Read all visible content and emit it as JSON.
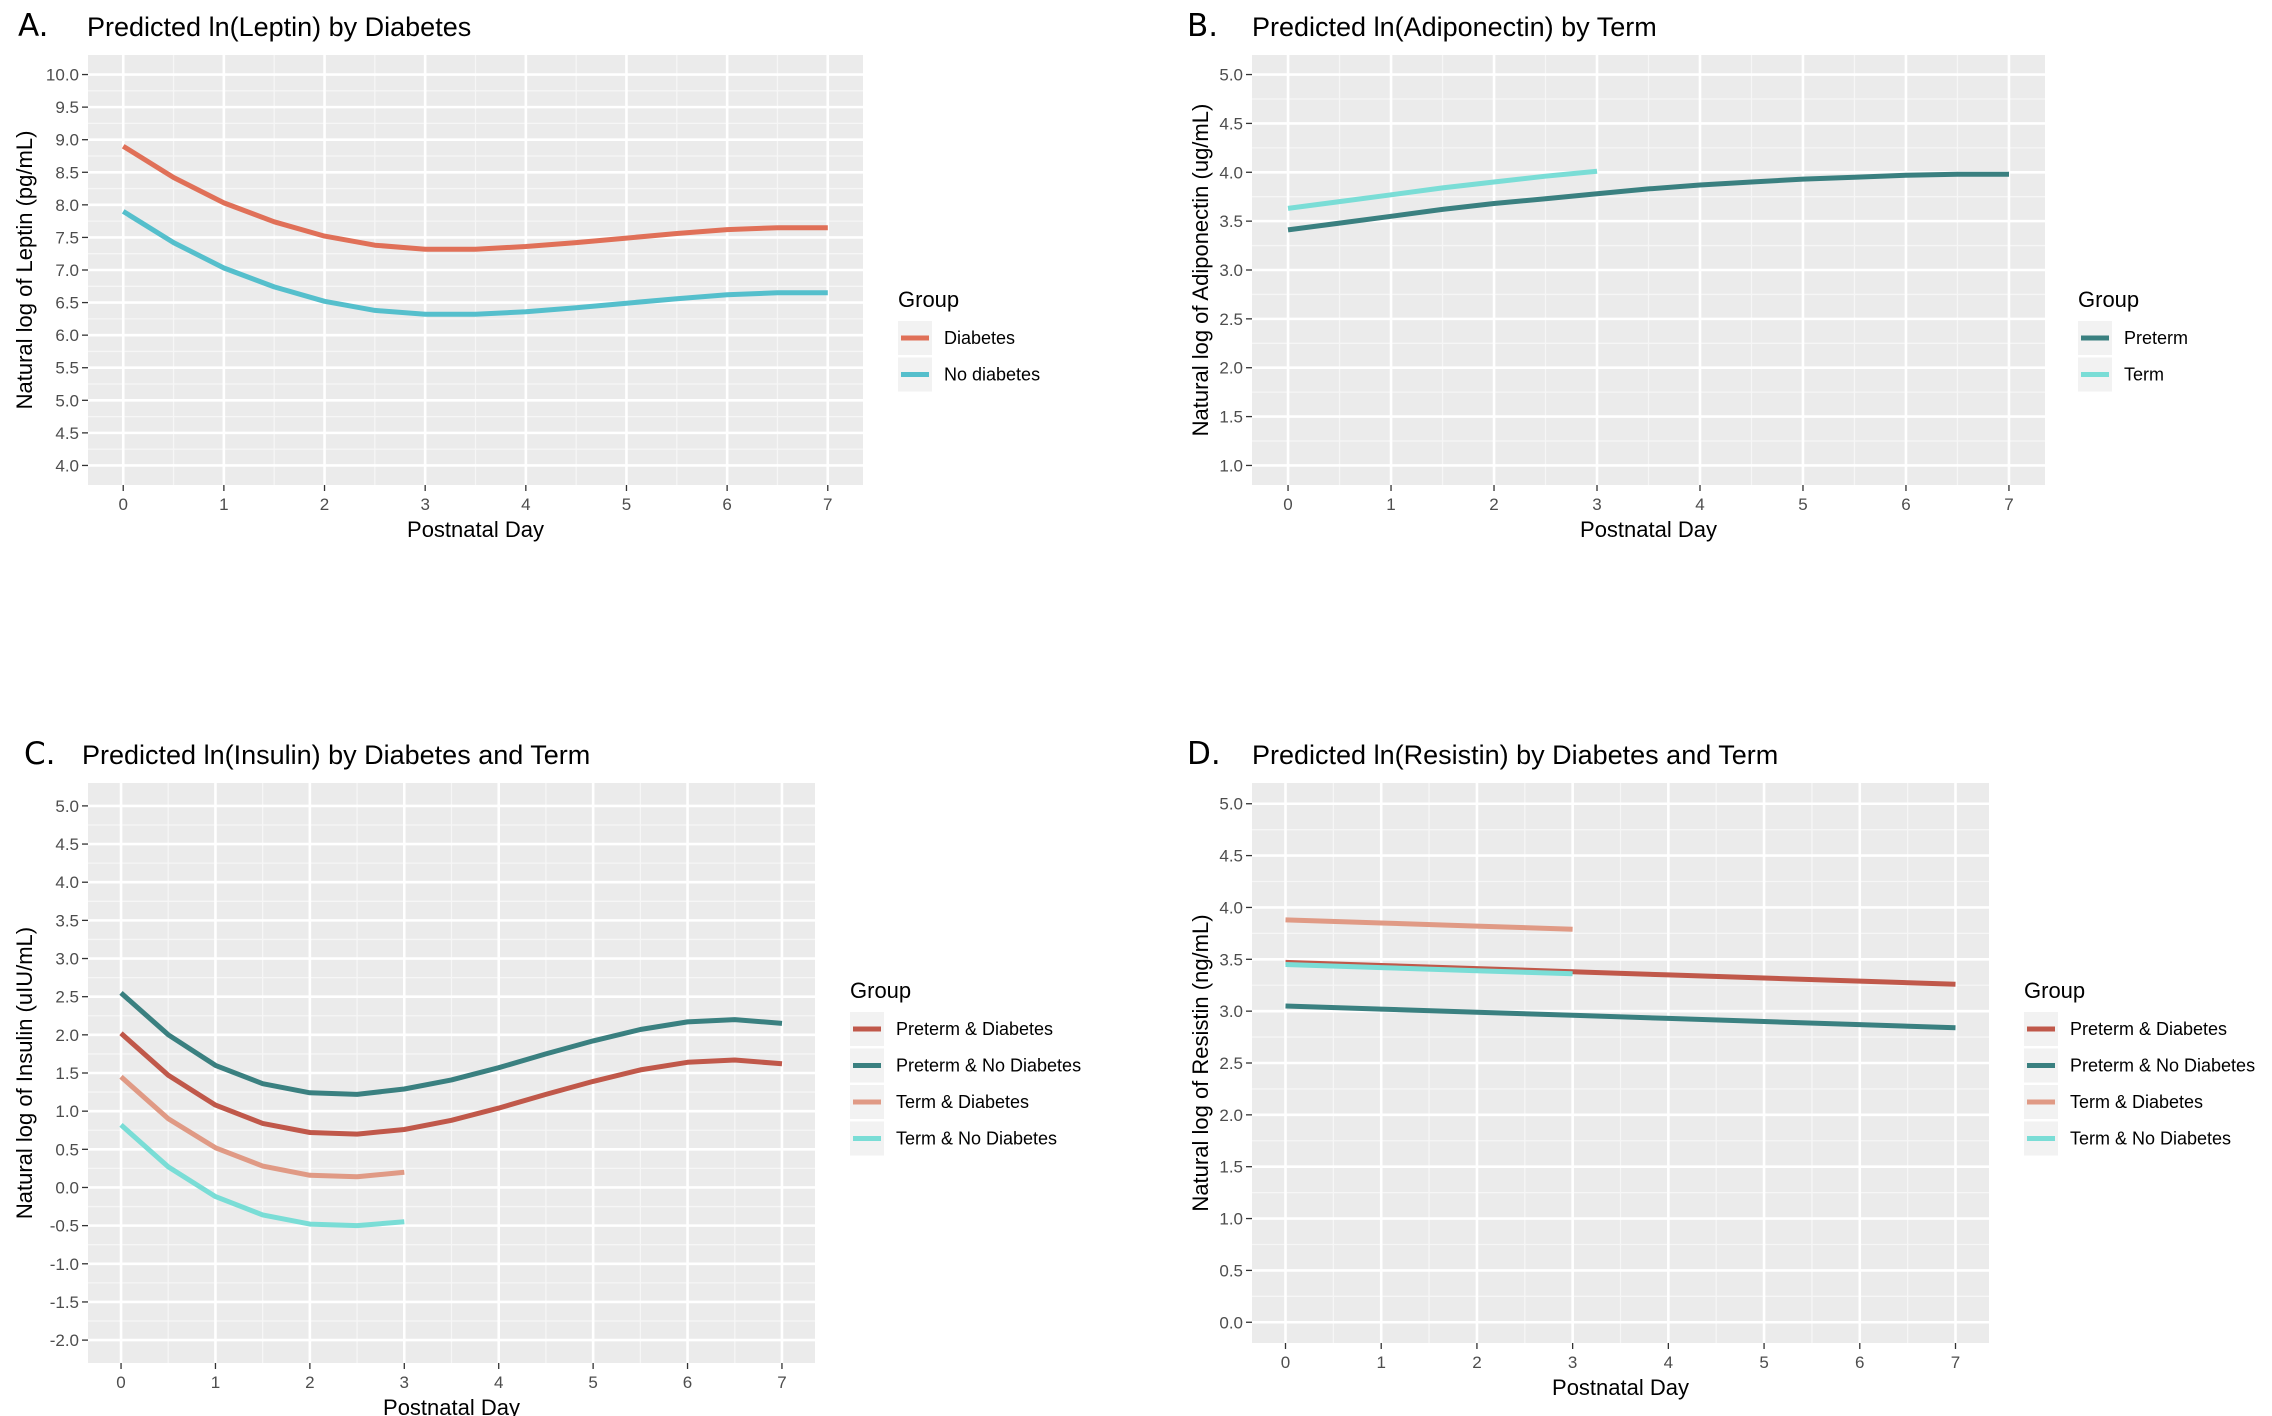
{
  "chart_data": [
    {
      "panel": "A.",
      "type": "line",
      "title": "Predicted ln(Leptin) by Diabetes",
      "xlabel": "Postnatal Day",
      "ylabel": "Natural log of Leptin (pg/mL)",
      "xlim": [
        -0.35,
        7.35
      ],
      "ylim": [
        3.7,
        10.3
      ],
      "xticks": [
        0,
        1,
        2,
        3,
        4,
        5,
        6,
        7
      ],
      "xtick_labels": [
        "0",
        "1",
        "2",
        "3",
        "4",
        "5",
        "6",
        "7"
      ],
      "yticks": [
        4.0,
        4.5,
        5.0,
        5.5,
        6.0,
        6.5,
        7.0,
        7.5,
        8.0,
        8.5,
        9.0,
        9.5,
        10.0
      ],
      "ytick_labels": [
        "4.0",
        "4.5",
        "5.0",
        "5.5",
        "6.0",
        "6.5",
        "7.0",
        "7.5",
        "8.0",
        "8.5",
        "9.0",
        "9.5",
        "10.0"
      ],
      "grid": true,
      "legend_title": "Group",
      "legend_position": "right",
      "series": [
        {
          "name": "Diabetes",
          "color": "#E07058",
          "x": [
            0,
            0.5,
            1,
            1.5,
            2,
            2.5,
            3,
            3.5,
            4,
            4.5,
            5,
            5.5,
            6,
            6.5,
            7
          ],
          "y": [
            8.9,
            8.42,
            8.03,
            7.74,
            7.52,
            7.38,
            7.32,
            7.32,
            7.36,
            7.42,
            7.49,
            7.56,
            7.62,
            7.65,
            7.65
          ]
        },
        {
          "name": "No diabetes",
          "color": "#55BFCC",
          "x": [
            0,
            0.5,
            1,
            1.5,
            2,
            2.5,
            3,
            3.5,
            4,
            4.5,
            5,
            5.5,
            6,
            6.5,
            7
          ],
          "y": [
            7.9,
            7.42,
            7.03,
            6.74,
            6.52,
            6.38,
            6.32,
            6.32,
            6.36,
            6.42,
            6.49,
            6.56,
            6.62,
            6.65,
            6.65
          ]
        }
      ]
    },
    {
      "panel": "B.",
      "type": "line",
      "title": "Predicted ln(Adiponectin) by Term",
      "xlabel": "Postnatal Day",
      "ylabel": "Natural log of Adiponectin (ug/mL)",
      "xlim": [
        -0.35,
        7.35
      ],
      "ylim": [
        0.8,
        5.2
      ],
      "xticks": [
        0,
        1,
        2,
        3,
        4,
        5,
        6,
        7
      ],
      "xtick_labels": [
        "0",
        "1",
        "2",
        "3",
        "4",
        "5",
        "6",
        "7"
      ],
      "yticks": [
        1.0,
        1.5,
        2.0,
        2.5,
        3.0,
        3.5,
        4.0,
        4.5,
        5.0
      ],
      "ytick_labels": [
        "1.0",
        "1.5",
        "2.0",
        "2.5",
        "3.0",
        "3.5",
        "4.0",
        "4.5",
        "5.0"
      ],
      "grid": true,
      "legend_title": "Group",
      "legend_position": "right",
      "series": [
        {
          "name": "Preterm",
          "color": "#3A8080",
          "x": [
            0,
            0.5,
            1,
            1.5,
            2,
            2.5,
            3,
            3.5,
            4,
            4.5,
            5,
            5.5,
            6,
            6.5,
            7
          ],
          "y": [
            3.41,
            3.48,
            3.55,
            3.62,
            3.68,
            3.73,
            3.78,
            3.83,
            3.87,
            3.9,
            3.93,
            3.95,
            3.97,
            3.98,
            3.98
          ]
        },
        {
          "name": "Term",
          "color": "#7ADDD6",
          "x": [
            0,
            0.5,
            1,
            1.5,
            2,
            2.5,
            3
          ],
          "y": [
            3.63,
            3.7,
            3.77,
            3.84,
            3.9,
            3.96,
            4.01
          ]
        }
      ]
    },
    {
      "panel": "C.",
      "type": "line",
      "title": "Predicted ln(Insulin) by Diabetes and Term",
      "xlabel": "Postnatal Day",
      "ylabel": "Natural log of Insulin (uIU/mL)",
      "xlim": [
        -0.35,
        7.35
      ],
      "ylim": [
        -2.3,
        5.3
      ],
      "xticks": [
        0,
        1,
        2,
        3,
        4,
        5,
        6,
        7
      ],
      "xtick_labels": [
        "0",
        "1",
        "2",
        "3",
        "4",
        "5",
        "6",
        "7"
      ],
      "yticks": [
        -2.0,
        -1.5,
        -1.0,
        -0.5,
        0.0,
        0.5,
        1.0,
        1.5,
        2.0,
        2.5,
        3.0,
        3.5,
        4.0,
        4.5,
        5.0
      ],
      "ytick_labels": [
        "-2.0",
        "-1.5",
        "-1.0",
        "-0.5",
        "0.0",
        "0.5",
        "1.0",
        "1.5",
        "2.0",
        "2.5",
        "3.0",
        "3.5",
        "4.0",
        "4.5",
        "5.0"
      ],
      "grid": true,
      "legend_title": "Group",
      "legend_position": "right",
      "series": [
        {
          "name": "Preterm & Diabetes",
          "color": "#C0584A",
          "x": [
            0,
            0.5,
            1,
            1.5,
            2,
            2.5,
            3,
            3.5,
            4,
            4.5,
            5,
            5.5,
            6,
            6.5,
            7
          ],
          "y": [
            2.02,
            1.47,
            1.08,
            0.84,
            0.72,
            0.7,
            0.76,
            0.88,
            1.04,
            1.22,
            1.39,
            1.54,
            1.64,
            1.67,
            1.62
          ]
        },
        {
          "name": "Preterm & No Diabetes",
          "color": "#3A8080",
          "x": [
            0,
            0.5,
            1,
            1.5,
            2,
            2.5,
            3,
            3.5,
            4,
            4.5,
            5,
            5.5,
            6,
            6.5,
            7
          ],
          "y": [
            2.55,
            2.0,
            1.6,
            1.36,
            1.24,
            1.22,
            1.29,
            1.41,
            1.57,
            1.75,
            1.92,
            2.07,
            2.17,
            2.2,
            2.15
          ]
        },
        {
          "name": "Term & Diabetes",
          "color": "#E09A85",
          "x": [
            0,
            0.5,
            1,
            1.5,
            2,
            2.5,
            3
          ],
          "y": [
            1.45,
            0.9,
            0.52,
            0.28,
            0.16,
            0.14,
            0.2
          ]
        },
        {
          "name": "Term & No Diabetes",
          "color": "#7ADDD6",
          "x": [
            0,
            0.5,
            1,
            1.5,
            2,
            2.5,
            3
          ],
          "y": [
            0.82,
            0.27,
            -0.12,
            -0.36,
            -0.48,
            -0.5,
            -0.45
          ]
        }
      ]
    },
    {
      "panel": "D.",
      "type": "line",
      "title": "Predicted ln(Resistin) by Diabetes and Term",
      "xlabel": "Postnatal Day",
      "ylabel": "Natural log of Resistin (ng/mL)",
      "xlim": [
        -0.35,
        7.35
      ],
      "ylim": [
        -0.2,
        5.2
      ],
      "xticks": [
        0,
        1,
        2,
        3,
        4,
        5,
        6,
        7
      ],
      "xtick_labels": [
        "0",
        "1",
        "2",
        "3",
        "4",
        "5",
        "6",
        "7"
      ],
      "yticks": [
        0.0,
        0.5,
        1.0,
        1.5,
        2.0,
        2.5,
        3.0,
        3.5,
        4.0,
        4.5,
        5.0
      ],
      "ytick_labels": [
        "0.0",
        "0.5",
        "1.0",
        "1.5",
        "2.0",
        "2.5",
        "3.0",
        "3.5",
        "4.0",
        "4.5",
        "5.0"
      ],
      "grid": true,
      "legend_title": "Group",
      "legend_position": "right",
      "series": [
        {
          "name": "Preterm & Diabetes",
          "color": "#C0584A",
          "x": [
            0,
            1,
            2,
            3,
            4,
            5,
            6,
            7
          ],
          "y": [
            3.47,
            3.44,
            3.41,
            3.38,
            3.35,
            3.32,
            3.29,
            3.26
          ]
        },
        {
          "name": "Preterm & No Diabetes",
          "color": "#3A8080",
          "x": [
            0,
            1,
            2,
            3,
            4,
            5,
            6,
            7
          ],
          "y": [
            3.05,
            3.02,
            2.99,
            2.96,
            2.93,
            2.9,
            2.87,
            2.84
          ]
        },
        {
          "name": "Term & Diabetes",
          "color": "#E09A85",
          "x": [
            0,
            1,
            2,
            3
          ],
          "y": [
            3.88,
            3.85,
            3.82,
            3.79
          ]
        },
        {
          "name": "Term & No Diabetes",
          "color": "#7ADDD6",
          "x": [
            0,
            1,
            2,
            3
          ],
          "y": [
            3.45,
            3.42,
            3.39,
            3.36
          ]
        }
      ]
    }
  ]
}
